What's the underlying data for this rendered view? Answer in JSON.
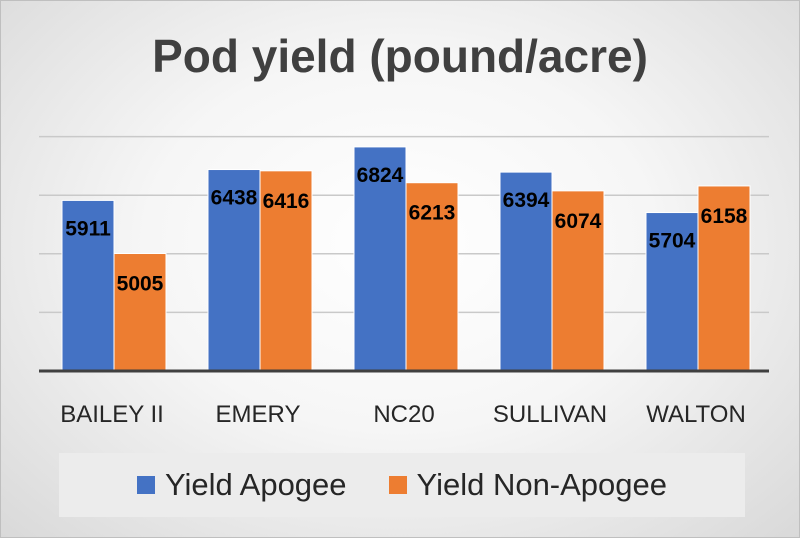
{
  "chart_data": {
    "type": "bar",
    "title": "Pod yield (pound/acre)",
    "categories": [
      "BAILEY II",
      "EMERY",
      "NC20",
      "SULLIVAN",
      "WALTON"
    ],
    "series": [
      {
        "name": "Yield Apogee",
        "color": "#4472c4",
        "values": [
          5911,
          6438,
          6824,
          6394,
          5704
        ]
      },
      {
        "name": "Yield Non-Apogee",
        "color": "#ed7d31",
        "values": [
          5005,
          6416,
          6213,
          6074,
          6158
        ]
      }
    ],
    "ylim": [
      0,
      7000
    ],
    "grid": true,
    "legend": "bottom"
  }
}
